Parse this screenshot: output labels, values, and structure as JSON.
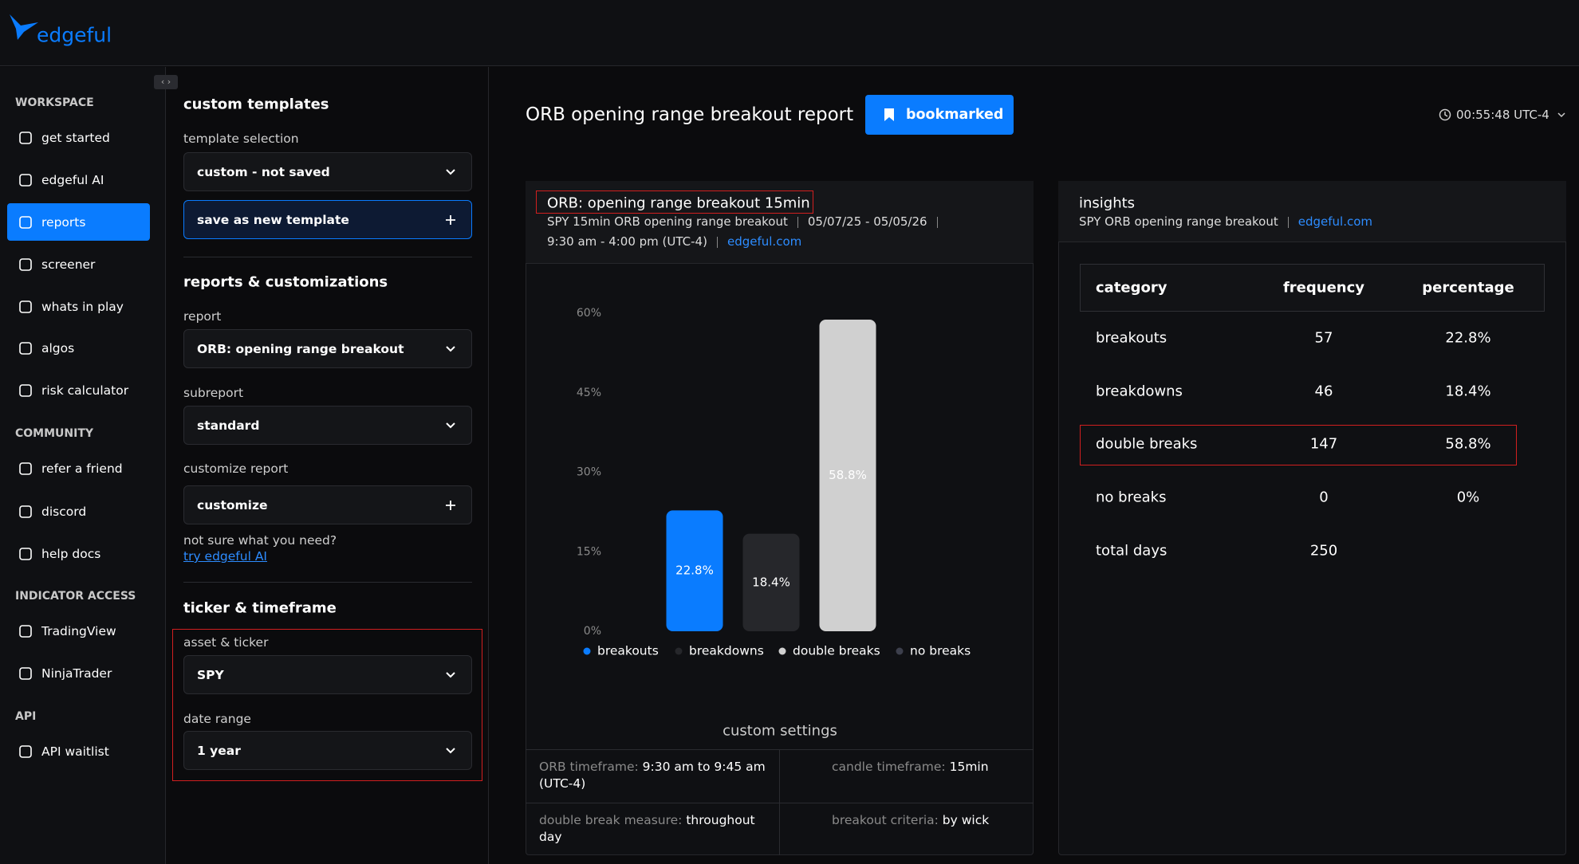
{
  "header": {
    "logo": "edgeful"
  },
  "sidebar": {
    "sections": [
      {
        "title": "WORKSPACE",
        "items": [
          "get started",
          "edgeful AI",
          "reports",
          "screener",
          "whats in play",
          "algos",
          "risk calculator"
        ]
      },
      {
        "title": "COMMUNITY",
        "items": [
          "refer a friend",
          "discord",
          "help docs"
        ]
      },
      {
        "title": "INDICATOR ACCESS",
        "items": [
          "TradingView",
          "NinjaTrader"
        ]
      },
      {
        "title": "API",
        "items": [
          "API waitlist"
        ]
      }
    ]
  },
  "panel": {
    "custom_templates": {
      "title": "custom templates",
      "template_label": "template selection",
      "template_value": "custom - not saved",
      "save_button": "save as new template"
    },
    "reports": {
      "title": "reports & customizations",
      "report_label": "report",
      "report_value": "ORB: opening range breakout",
      "subreport_label": "subreport",
      "subreport_value": "standard",
      "customize_label": "customize report",
      "customize_value": "customize",
      "help_text": "not sure what you need?",
      "help_link": "try edgeful AI"
    },
    "ticker": {
      "title": "ticker & timeframe",
      "asset_label": "asset & ticker",
      "asset_value": "SPY",
      "date_label": "date range",
      "date_value": "1 year"
    }
  },
  "main": {
    "title": "ORB opening range breakout report",
    "bookmark": "bookmarked",
    "time": "00:55:48 UTC-4"
  },
  "report_card": {
    "title": "ORB: opening range breakout 15min",
    "subtitle": [
      "SPY 15min ORB opening range breakout",
      "05/07/25 - 05/05/26"
    ],
    "subtitle_time": "9:30 am - 4:00 pm (UTC-4)",
    "link": "edgeful.com",
    "settings_title": "custom settings",
    "settings": [
      {
        "label": "ORB timeframe:",
        "value": "9:30 am to 9:45 am (UTC-4)"
      },
      {
        "label": "candle timeframe:",
        "value": "15min"
      },
      {
        "label": "double break measure:",
        "value": "throughout day"
      },
      {
        "label": "breakout criteria:",
        "value": "by wick"
      }
    ]
  },
  "chart_data": {
    "type": "bar",
    "categories": [
      "breakouts",
      "breakdowns",
      "double breaks",
      "no breaks"
    ],
    "values": [
      22.8,
      18.4,
      58.8,
      0
    ],
    "value_labels": [
      "22.8%",
      "18.4%",
      "58.8%",
      null
    ],
    "colors": [
      "#0a7cff",
      "#26272b",
      "#d0d0d0",
      "#3c3f4c"
    ],
    "ylim": [
      0,
      60
    ],
    "yticks": [
      {
        "value": 0,
        "label": "0%"
      },
      {
        "value": 15,
        "label": "15%"
      },
      {
        "value": 30,
        "label": "30%"
      },
      {
        "value": 45,
        "label": "45%"
      },
      {
        "value": 60,
        "label": "60%"
      }
    ],
    "grid": false,
    "legend": "bottom"
  },
  "insights": {
    "title": "insights",
    "subtitle": "SPY ORB opening range breakout",
    "link": "edgeful.com",
    "table": {
      "header": [
        "category",
        "frequency",
        "percentage"
      ],
      "rows": [
        [
          "breakouts",
          "57",
          "22.8%"
        ],
        [
          "breakdowns",
          "46",
          "18.4%"
        ],
        [
          "double breaks",
          "147",
          "58.8%"
        ],
        [
          "no breaks",
          "0",
          "0%"
        ],
        [
          "total days",
          "250"
        ]
      ]
    }
  }
}
